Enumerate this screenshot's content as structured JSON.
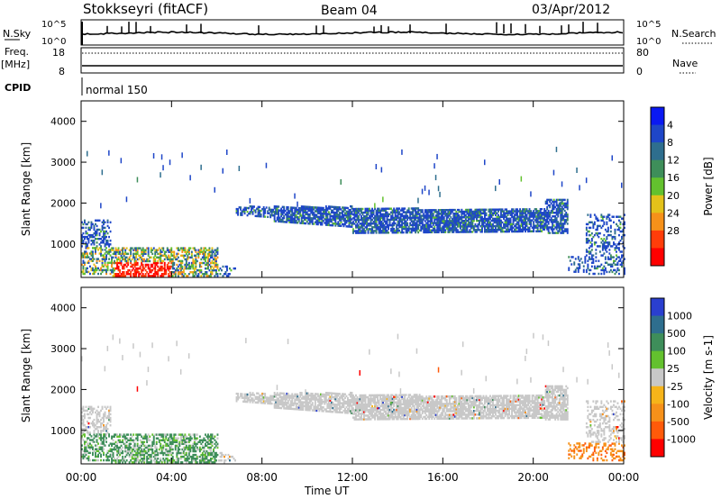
{
  "header": {
    "title": "Stokkseyri (fitACF)",
    "beam": "Beam 04",
    "date": "03/Apr/2012"
  },
  "side_labels": {
    "nsky": "N.Sky",
    "nsearch": "N.Search",
    "freq": "Freq.",
    "freq_unit": "[MHz]",
    "nave": "Nave",
    "cpid": "CPID"
  },
  "noise_axis": {
    "top": "10^5",
    "bottom": "10^0"
  },
  "freq_axis": {
    "left_ticks": [
      "18",
      "8"
    ],
    "right_ticks": [
      "80",
      "0"
    ]
  },
  "cpid_text": "normal 150",
  "chart_data": [
    {
      "type": "heatmap",
      "title": "",
      "xlabel": "Time UT",
      "ylabel": "Slant Range [km]",
      "x_ticks": [
        "00:00",
        "04:00",
        "08:00",
        "12:00",
        "16:00",
        "20:00",
        "00:00"
      ],
      "y_ticks": [
        1000,
        2000,
        3000,
        4000
      ],
      "ylim": [
        180,
        4500
      ],
      "xlim_hours": [
        0,
        24
      ],
      "colorbar": {
        "label": "Power [dB]",
        "ticks": [
          "4",
          "8",
          "12",
          "16",
          "20",
          "24",
          "28"
        ],
        "colors": [
          "#0a19f2",
          "#1e46c8",
          "#2e6e8e",
          "#3e8e5a",
          "#63c12e",
          "#e3c21a",
          "#f6911a",
          "#ff3d0a",
          "#ff0000"
        ]
      }
    },
    {
      "type": "heatmap",
      "title": "",
      "xlabel": "Time UT",
      "ylabel": "Slant Range [km]",
      "x_ticks": [
        "00:00",
        "04:00",
        "08:00",
        "12:00",
        "16:00",
        "20:00",
        "00:00"
      ],
      "y_ticks": [
        1000,
        2000,
        3000,
        4000
      ],
      "ylim": [
        180,
        4500
      ],
      "xlim_hours": [
        0,
        24
      ],
      "colorbar": {
        "label": "Velocity [m s-1]",
        "ticks": [
          "1000",
          "500",
          "100",
          "25",
          "-25",
          "-100",
          "-500",
          "-1000"
        ],
        "colors": [
          "#2a3fcf",
          "#2e6e8e",
          "#3e8e5a",
          "#63c12e",
          "#c8c8c8",
          "#f6b41a",
          "#f6911a",
          "#ff5a0a",
          "#ff0000"
        ]
      }
    }
  ]
}
